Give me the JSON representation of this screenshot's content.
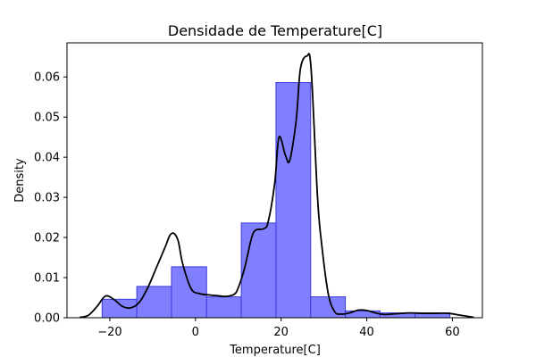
{
  "chart_data": {
    "type": "bar",
    "title": "Densidade de Temperature[C]",
    "xlabel": "Temperature[C]",
    "ylabel": "Density",
    "xlim": [
      -30,
      67
    ],
    "ylim": [
      0,
      0.0685
    ],
    "x_ticks": [
      -20,
      0,
      20,
      40,
      60
    ],
    "x_tick_labels": [
      "−20",
      "0",
      "20",
      "40",
      "60"
    ],
    "y_ticks": [
      0,
      0.01,
      0.02,
      0.03,
      0.04,
      0.05,
      0.06
    ],
    "y_tick_labels": [
      "0.00",
      "0.01",
      "0.02",
      "0.03",
      "0.04",
      "0.05",
      "0.06"
    ],
    "grid": false,
    "legend": "none",
    "bins": [
      {
        "start": -21.8,
        "end": -13.7,
        "value": 0.0046
      },
      {
        "start": -13.7,
        "end": -5.6,
        "value": 0.0078
      },
      {
        "start": -5.6,
        "end": 2.6,
        "value": 0.0127
      },
      {
        "start": 2.6,
        "end": 10.7,
        "value": 0.0052
      },
      {
        "start": 10.7,
        "end": 18.8,
        "value": 0.0236
      },
      {
        "start": 18.8,
        "end": 26.9,
        "value": 0.0586
      },
      {
        "start": 26.9,
        "end": 35.0,
        "value": 0.0052
      },
      {
        "start": 35.0,
        "end": 43.1,
        "value": 0.0017
      },
      {
        "start": 43.1,
        "end": 51.3,
        "value": 0.0012
      },
      {
        "start": 51.3,
        "end": 59.4,
        "value": 0.0012
      }
    ],
    "kde": {
      "x": [
        -27.0,
        -25.0,
        -23.0,
        -21.0,
        -19.0,
        -17.0,
        -15.0,
        -13.0,
        -11.0,
        -9.0,
        -7.0,
        -6.0,
        -5.0,
        -4.0,
        -3.0,
        -1.0,
        1.0,
        3.0,
        5.0,
        7.0,
        9.0,
        10.0,
        11.5,
        13.0,
        14.0,
        16.0,
        17.0,
        18.5,
        19.5,
        21.0,
        22.0,
        23.5,
        24.5,
        26.0,
        27.0,
        28.5,
        29.5,
        31.0,
        32.5,
        34.0,
        36.0,
        38.0,
        40.0,
        42.0,
        44.0,
        47.0,
        50.0,
        53.0,
        56.0,
        59.0,
        62.0,
        65.0
      ],
      "y": [
        0.0001,
        0.0006,
        0.0028,
        0.0054,
        0.0045,
        0.0028,
        0.0025,
        0.004,
        0.0078,
        0.0128,
        0.0178,
        0.0205,
        0.021,
        0.019,
        0.0135,
        0.0072,
        0.006,
        0.0057,
        0.0055,
        0.0053,
        0.0058,
        0.0075,
        0.0125,
        0.0195,
        0.0218,
        0.0222,
        0.024,
        0.0335,
        0.045,
        0.0405,
        0.0392,
        0.049,
        0.062,
        0.0652,
        0.062,
        0.03,
        0.018,
        0.006,
        0.0015,
        0.0009,
        0.0012,
        0.0019,
        0.0018,
        0.0012,
        0.0008,
        0.001,
        0.0012,
        0.0011,
        0.0011,
        0.0011,
        0.0006,
        0.0001
      ]
    },
    "colors": {
      "bar_fill": "#8080ff",
      "bar_edge": "#3b3bdd",
      "kde_line": "#000000",
      "axes": "#000000"
    }
  }
}
